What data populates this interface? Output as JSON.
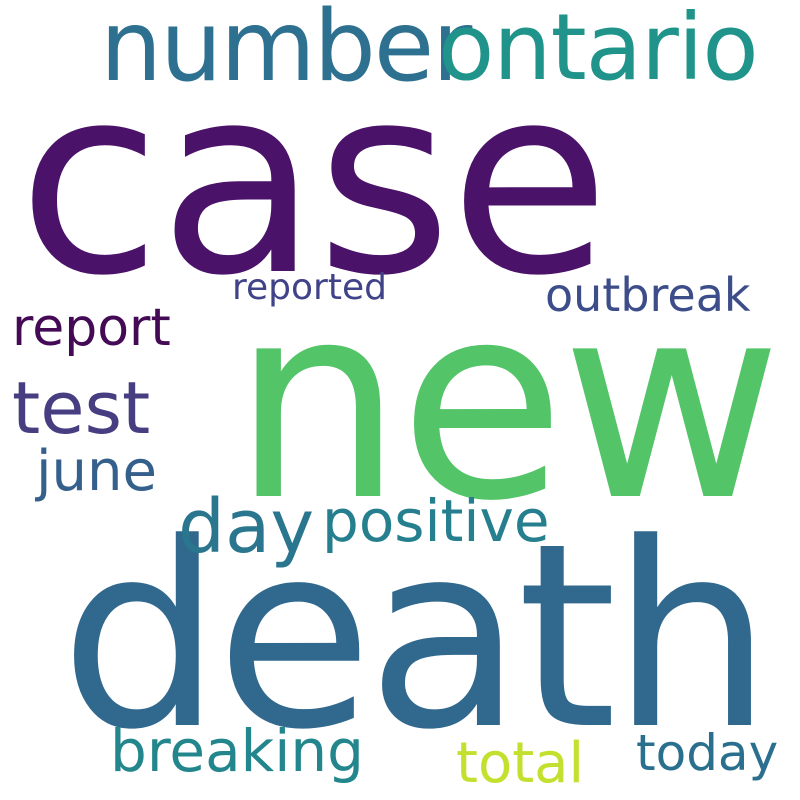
{
  "words": {
    "case": {
      "text": "case",
      "color": "#4a1268"
    },
    "new": {
      "text": "new",
      "color": "#54c469"
    },
    "death": {
      "text": "death",
      "color": "#31688e"
    },
    "number": {
      "text": "number",
      "color": "#2e7090"
    },
    "ontario": {
      "text": "ontario",
      "color": "#20948b"
    },
    "reported": {
      "text": "reported",
      "color": "#404388"
    },
    "outbreak": {
      "text": "outbreak",
      "color": "#3c4d8a"
    },
    "report": {
      "text": "report",
      "color": "#440a55"
    },
    "test": {
      "text": "test",
      "color": "#473e82"
    },
    "june": {
      "text": "june",
      "color": "#35608c"
    },
    "day": {
      "text": "day",
      "color": "#2a768e"
    },
    "positive": {
      "text": "positive",
      "color": "#257f8e"
    },
    "breaking": {
      "text": "breaking",
      "color": "#22868c"
    },
    "total": {
      "text": "total",
      "color": "#c4e02e"
    },
    "today": {
      "text": "today",
      "color": "#2a6f8e"
    }
  }
}
